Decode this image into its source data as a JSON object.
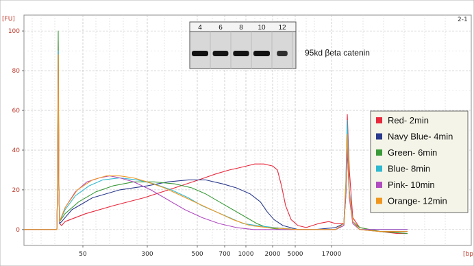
{
  "chart_data": {
    "type": "line",
    "y_unit_label": "[FU]",
    "x_unit_label": "[bp]",
    "corner_label": "2-1",
    "y_ticks": [
      0,
      20,
      40,
      60,
      80,
      100
    ],
    "x_ticks": [
      "50",
      "300",
      "500",
      "700",
      "1000",
      "2000",
      "5000",
      "17000"
    ],
    "ylim": [
      -8,
      108
    ],
    "grid": true,
    "legend_position": "right",
    "series": [
      {
        "name": "Red- 2min",
        "color": "#e8283c",
        "points": [
          [
            0,
            0
          ],
          [
            48,
            0
          ],
          [
            49,
            20
          ],
          [
            50,
            95
          ],
          [
            51,
            20
          ],
          [
            52,
            3
          ],
          [
            55,
            2
          ],
          [
            60,
            4
          ],
          [
            90,
            8
          ],
          [
            130,
            12
          ],
          [
            175,
            16
          ],
          [
            220,
            21
          ],
          [
            255,
            25
          ],
          [
            280,
            28
          ],
          [
            300,
            30
          ],
          [
            313,
            31
          ],
          [
            325,
            32
          ],
          [
            337,
            33
          ],
          [
            350,
            33
          ],
          [
            363,
            32
          ],
          [
            370,
            30
          ],
          [
            376,
            22
          ],
          [
            382,
            12
          ],
          [
            390,
            5
          ],
          [
            400,
            2
          ],
          [
            412,
            1
          ],
          [
            430,
            3
          ],
          [
            445,
            4
          ],
          [
            455,
            3
          ],
          [
            467,
            3
          ],
          [
            470,
            22
          ],
          [
            472,
            58
          ],
          [
            475,
            30
          ],
          [
            480,
            6
          ],
          [
            490,
            1
          ],
          [
            520,
            -1
          ],
          [
            545,
            -2
          ],
          [
            560,
            -2
          ]
        ]
      },
      {
        "name": "Navy Blue- 4min",
        "color": "#2b3a8c",
        "points": [
          [
            0,
            0
          ],
          [
            48,
            0
          ],
          [
            49,
            20
          ],
          [
            50,
            80
          ],
          [
            51,
            20
          ],
          [
            52,
            3
          ],
          [
            55,
            4
          ],
          [
            70,
            10
          ],
          [
            100,
            16
          ],
          [
            140,
            20
          ],
          [
            180,
            22
          ],
          [
            210,
            24
          ],
          [
            240,
            25
          ],
          [
            265,
            25
          ],
          [
            290,
            23
          ],
          [
            310,
            21
          ],
          [
            330,
            18
          ],
          [
            345,
            14
          ],
          [
            355,
            9
          ],
          [
            365,
            5
          ],
          [
            378,
            2
          ],
          [
            400,
            0
          ],
          [
            425,
            0
          ],
          [
            455,
            1
          ],
          [
            467,
            3
          ],
          [
            470,
            18
          ],
          [
            472,
            40
          ],
          [
            475,
            18
          ],
          [
            480,
            4
          ],
          [
            490,
            0
          ],
          [
            520,
            -1
          ],
          [
            560,
            -1
          ]
        ]
      },
      {
        "name": "Green- 6min",
        "color": "#3a9a3a",
        "points": [
          [
            0,
            0
          ],
          [
            48,
            0
          ],
          [
            49,
            20
          ],
          [
            50,
            100
          ],
          [
            51,
            22
          ],
          [
            52,
            4
          ],
          [
            60,
            8
          ],
          [
            80,
            14
          ],
          [
            105,
            19
          ],
          [
            130,
            22
          ],
          [
            160,
            24
          ],
          [
            190,
            24
          ],
          [
            220,
            23
          ],
          [
            245,
            21
          ],
          [
            265,
            18
          ],
          [
            285,
            14
          ],
          [
            305,
            10
          ],
          [
            325,
            6
          ],
          [
            340,
            3
          ],
          [
            355,
            1
          ],
          [
            375,
            0
          ],
          [
            400,
            0
          ],
          [
            455,
            0
          ],
          [
            467,
            2
          ],
          [
            470,
            18
          ],
          [
            472,
            45
          ],
          [
            475,
            18
          ],
          [
            480,
            4
          ],
          [
            490,
            1
          ],
          [
            520,
            -1
          ],
          [
            560,
            -2
          ]
        ]
      },
      {
        "name": "Blue- 8min",
        "color": "#2fb8d0",
        "points": [
          [
            0,
            0
          ],
          [
            48,
            0
          ],
          [
            49,
            20
          ],
          [
            50,
            90
          ],
          [
            51,
            20
          ],
          [
            52,
            4
          ],
          [
            60,
            10
          ],
          [
            75,
            17
          ],
          [
            95,
            22
          ],
          [
            115,
            25
          ],
          [
            140,
            26
          ],
          [
            165,
            25
          ],
          [
            190,
            23
          ],
          [
            215,
            20
          ],
          [
            240,
            16
          ],
          [
            260,
            12
          ],
          [
            280,
            9
          ],
          [
            300,
            6
          ],
          [
            320,
            3
          ],
          [
            340,
            2
          ],
          [
            365,
            1
          ],
          [
            400,
            0
          ],
          [
            455,
            0
          ],
          [
            467,
            3
          ],
          [
            470,
            25
          ],
          [
            472,
            55
          ],
          [
            475,
            20
          ],
          [
            480,
            4
          ],
          [
            490,
            0
          ],
          [
            520,
            0
          ],
          [
            560,
            0
          ]
        ]
      },
      {
        "name": "Pink- 10min",
        "color": "#b04bc0",
        "points": [
          [
            0,
            0
          ],
          [
            48,
            0
          ],
          [
            49,
            20
          ],
          [
            50,
            82
          ],
          [
            51,
            20
          ],
          [
            52,
            4
          ],
          [
            60,
            11
          ],
          [
            75,
            19
          ],
          [
            92,
            24
          ],
          [
            110,
            26
          ],
          [
            125,
            27
          ],
          [
            140,
            26
          ],
          [
            160,
            24
          ],
          [
            185,
            20
          ],
          [
            210,
            15
          ],
          [
            235,
            10
          ],
          [
            260,
            6
          ],
          [
            285,
            3
          ],
          [
            310,
            1
          ],
          [
            335,
            0
          ],
          [
            400,
            0
          ],
          [
            455,
            0
          ],
          [
            467,
            2
          ],
          [
            470,
            18
          ],
          [
            472,
            42
          ],
          [
            475,
            16
          ],
          [
            480,
            3
          ],
          [
            490,
            0
          ],
          [
            520,
            0
          ],
          [
            560,
            0
          ]
        ]
      },
      {
        "name": "Orange- 12min",
        "color": "#f0961e",
        "points": [
          [
            0,
            0
          ],
          [
            48,
            0
          ],
          [
            49,
            20
          ],
          [
            50,
            88
          ],
          [
            51,
            20
          ],
          [
            52,
            4
          ],
          [
            60,
            11
          ],
          [
            78,
            20
          ],
          [
            100,
            25
          ],
          [
            120,
            27
          ],
          [
            140,
            27
          ],
          [
            160,
            26
          ],
          [
            180,
            24
          ],
          [
            205,
            21
          ],
          [
            230,
            17
          ],
          [
            255,
            13
          ],
          [
            280,
            9
          ],
          [
            305,
            5
          ],
          [
            330,
            2
          ],
          [
            355,
            1
          ],
          [
            400,
            0
          ],
          [
            455,
            0
          ],
          [
            467,
            3
          ],
          [
            470,
            22
          ],
          [
            472,
            48
          ],
          [
            475,
            18
          ],
          [
            480,
            4
          ],
          [
            490,
            0
          ],
          [
            520,
            -1
          ],
          [
            560,
            -1
          ]
        ]
      }
    ]
  },
  "inset": {
    "lanes": [
      "4",
      "6",
      "8",
      "10",
      "12"
    ],
    "band_intensity": [
      1.0,
      0.95,
      0.97,
      1.0,
      0.65
    ],
    "label": "95kd βeta catenin"
  }
}
